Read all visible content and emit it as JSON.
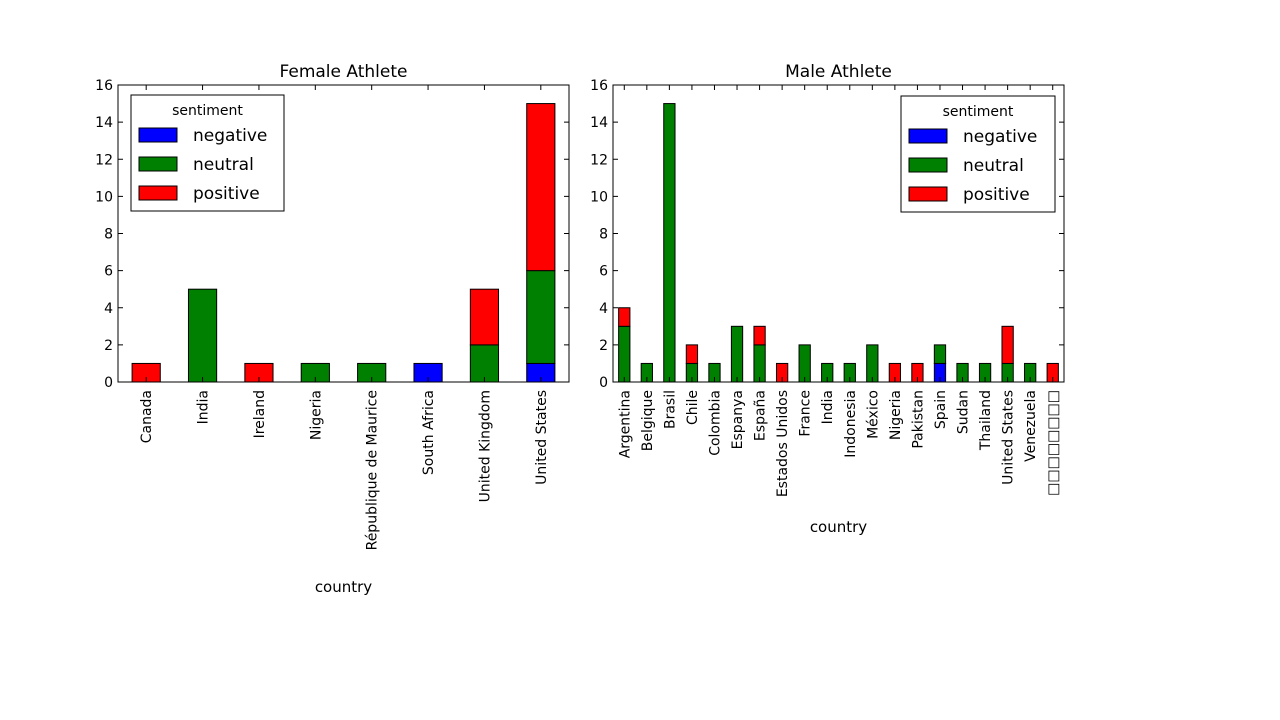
{
  "chart_data": [
    {
      "type": "bar",
      "stacked": true,
      "title": "Female Athlete",
      "xlabel": "country",
      "ylabel": "",
      "ylim": [
        0,
        16
      ],
      "yticks": [
        0,
        2,
        4,
        6,
        8,
        10,
        12,
        14,
        16
      ],
      "grid": false,
      "legend": {
        "title": "sentiment",
        "placement": "top-left"
      },
      "categories": [
        "Canada",
        "India",
        "Ireland",
        "Nigeria",
        "République de Maurice",
        "South Africa",
        "United Kingdom",
        "United States"
      ],
      "series": [
        {
          "name": "negative",
          "color": "#0000ff",
          "values": [
            0,
            0,
            0,
            0,
            0,
            1,
            0,
            1
          ]
        },
        {
          "name": "neutral",
          "color": "#008000",
          "values": [
            0,
            5,
            0,
            1,
            1,
            0,
            2,
            5
          ]
        },
        {
          "name": "positive",
          "color": "#ff0000",
          "values": [
            1,
            0,
            1,
            0,
            0,
            0,
            3,
            9
          ]
        }
      ]
    },
    {
      "type": "bar",
      "stacked": true,
      "title": "Male Athlete",
      "xlabel": "country",
      "ylabel": "",
      "ylim": [
        0,
        16
      ],
      "yticks": [
        0,
        2,
        4,
        6,
        8,
        10,
        12,
        14,
        16
      ],
      "grid": false,
      "legend": {
        "title": "sentiment",
        "placement": "top-right"
      },
      "categories": [
        "Argentina",
        "Belgique",
        "Brasil",
        "Chile",
        "Colombia",
        "Espanya",
        "España",
        "Estados Unidos",
        "France",
        "India",
        "Indonesia",
        "México",
        "Nigeria",
        "Pakistan",
        "Spain",
        "Sudan",
        "Thailand",
        "United States",
        "Venezuela",
        "□□□□□□□□"
      ],
      "series": [
        {
          "name": "negative",
          "color": "#0000ff",
          "values": [
            0,
            0,
            0,
            0,
            0,
            0,
            0,
            0,
            0,
            0,
            0,
            0,
            0,
            0,
            1,
            0,
            0,
            0,
            0,
            0
          ]
        },
        {
          "name": "neutral",
          "color": "#008000",
          "values": [
            3,
            1,
            15,
            1,
            1,
            3,
            2,
            0,
            2,
            1,
            1,
            2,
            0,
            0,
            1,
            1,
            1,
            1,
            1,
            0
          ]
        },
        {
          "name": "positive",
          "color": "#ff0000",
          "values": [
            1,
            0,
            0,
            1,
            0,
            0,
            1,
            1,
            0,
            0,
            0,
            0,
            1,
            1,
            0,
            0,
            0,
            2,
            0,
            1
          ]
        }
      ]
    }
  ]
}
